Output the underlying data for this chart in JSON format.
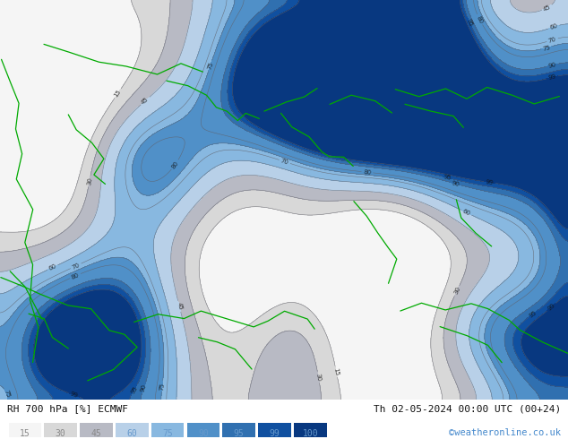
{
  "title_left": "RH 700 hPa [%] ECMWF",
  "title_right": "Th 02-05-2024 00:00 UTC (00+24)",
  "credit": "©weatheronline.co.uk",
  "colorbar_levels": [
    15,
    30,
    45,
    60,
    75,
    90,
    95,
    99,
    100
  ],
  "fill_colors": [
    "#f5f5f5",
    "#d8d8d8",
    "#b8bac4",
    "#b8d0e8",
    "#88b8e0",
    "#5090c8",
    "#3070b0",
    "#1050a0",
    "#083880"
  ],
  "contour_color": "#606068",
  "label_color": "#111111",
  "green_coast": "#00aa00",
  "light_green": "#c8e8a0",
  "bg_color": "#ffffff",
  "figsize": [
    6.34,
    4.9
  ],
  "dpi": 100
}
